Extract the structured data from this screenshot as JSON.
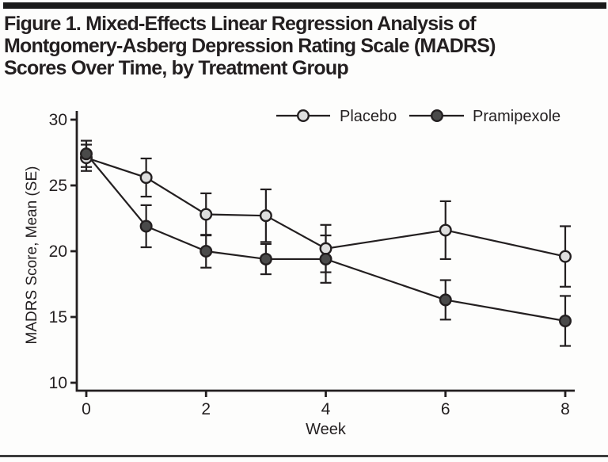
{
  "title": {
    "lines": [
      "Figure 1. Mixed-Effects Linear Regression Analysis of",
      "Montgomery-Asberg Depression Rating Scale (MADRS)",
      "Scores Over Time, by Treatment Group"
    ]
  },
  "colors": {
    "ink": "#231f20",
    "top_rule": "#1a1a1a",
    "bottom_rule": "#3c3c3c",
    "placebo_marker": "#dedede",
    "pramipexole_marker": "#4a4a4a"
  },
  "chart_data": {
    "type": "line",
    "x": [
      0,
      1,
      2,
      3,
      4,
      6,
      8
    ],
    "series": [
      {
        "name": "Placebo",
        "values": [
          27.1,
          25.6,
          22.8,
          22.7,
          20.2,
          21.6,
          19.6
        ],
        "se": [
          1.0,
          1.45,
          1.6,
          2.0,
          1.8,
          2.2,
          2.3
        ],
        "marker_fill": "#dedede"
      },
      {
        "name": "Pramipexole",
        "values": [
          27.4,
          21.9,
          20.0,
          19.4,
          19.4,
          16.3,
          14.7
        ],
        "se": [
          1.0,
          1.6,
          1.25,
          1.15,
          1.8,
          1.5,
          1.9
        ],
        "marker_fill": "#4a4a4a"
      }
    ],
    "xlabel": "Week",
    "ylabel": "MADRS Score, Mean (SE)",
    "xlim": [
      0,
      8
    ],
    "ylim": [
      10,
      30
    ],
    "xticks": [
      0,
      2,
      4,
      6,
      8
    ],
    "yticks": [
      10,
      15,
      20,
      25,
      30
    ],
    "grid": false,
    "error_bars": "SE",
    "legend_position": "top-center"
  }
}
